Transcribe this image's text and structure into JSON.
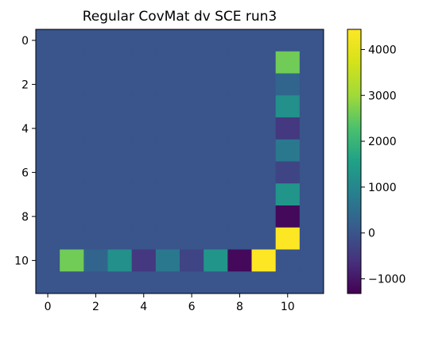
{
  "chart_data": {
    "type": "heatmap",
    "title": "Regular CovMat dv SCE run3",
    "xlabel": "",
    "ylabel": "",
    "rows": 12,
    "cols": 12,
    "x_ticks": [
      0,
      2,
      4,
      6,
      8,
      10
    ],
    "y_ticks": [
      0,
      2,
      4,
      6,
      8,
      10
    ],
    "x_range": [
      -0.5,
      11.5
    ],
    "y_range": [
      -0.5,
      11.5
    ],
    "colormap": "viridis",
    "colorbar": {
      "vmin": -1320,
      "vmax": 4440,
      "ticks": [
        -1000,
        0,
        1000,
        2000,
        3000,
        4000
      ]
    },
    "background_value": 0,
    "values": [
      [
        0,
        0,
        0,
        0,
        0,
        0,
        0,
        0,
        0,
        0,
        0,
        0
      ],
      [
        0,
        0,
        0,
        0,
        0,
        0,
        0,
        0,
        0,
        0,
        2600,
        0
      ],
      [
        0,
        0,
        0,
        0,
        0,
        0,
        0,
        0,
        0,
        0,
        300,
        0
      ],
      [
        0,
        0,
        0,
        0,
        0,
        0,
        0,
        0,
        0,
        0,
        1200,
        0
      ],
      [
        0,
        0,
        0,
        0,
        0,
        0,
        0,
        0,
        0,
        0,
        -500,
        0
      ],
      [
        0,
        0,
        0,
        0,
        0,
        0,
        0,
        0,
        0,
        0,
        700,
        0
      ],
      [
        0,
        0,
        0,
        0,
        0,
        0,
        0,
        0,
        0,
        0,
        -300,
        0
      ],
      [
        0,
        0,
        0,
        0,
        0,
        0,
        0,
        0,
        0,
        0,
        1300,
        0
      ],
      [
        0,
        0,
        0,
        0,
        0,
        0,
        0,
        0,
        0,
        0,
        -1200,
        0
      ],
      [
        0,
        0,
        0,
        0,
        0,
        0,
        0,
        0,
        0,
        0,
        4440,
        0
      ],
      [
        0,
        2600,
        300,
        1200,
        -500,
        700,
        -300,
        1300,
        -1200,
        4440,
        0,
        0
      ],
      [
        0,
        0,
        0,
        0,
        0,
        0,
        0,
        0,
        0,
        0,
        0,
        0
      ]
    ]
  }
}
